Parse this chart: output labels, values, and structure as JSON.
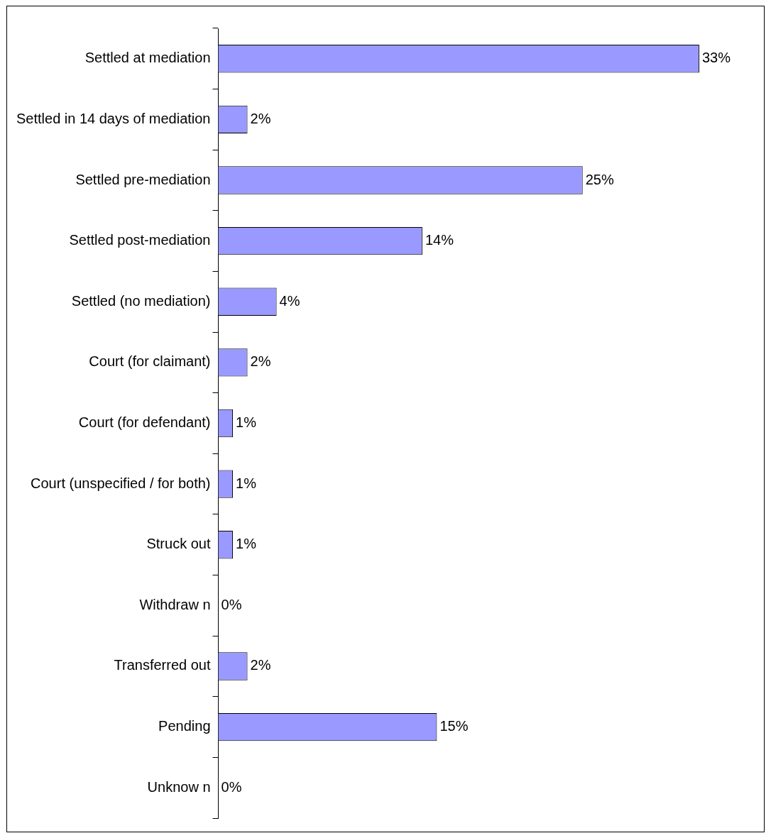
{
  "chart_data": {
    "type": "bar",
    "orientation": "horizontal",
    "categories": [
      "Settled at mediation",
      "Settled in 14 days of mediation",
      "Settled pre-mediation",
      "Settled post-mediation",
      "Settled (no mediation)",
      "Court (for claimant)",
      "Court (for defendant)",
      "Court (unspecified / for both)",
      "Struck out",
      "Withdraw n",
      "Transferred out",
      "Pending",
      "Unknow n"
    ],
    "values": [
      33,
      2,
      25,
      14,
      4,
      2,
      1,
      1,
      1,
      0,
      2,
      15,
      0
    ],
    "value_labels": [
      "33%",
      "2%",
      "25%",
      "14%",
      "4%",
      "2%",
      "1%",
      "1%",
      "1%",
      "0%",
      "2%",
      "15%",
      "0%"
    ],
    "color": "#9999ff",
    "grid": false,
    "legend": false,
    "tick_labels": "y"
  }
}
